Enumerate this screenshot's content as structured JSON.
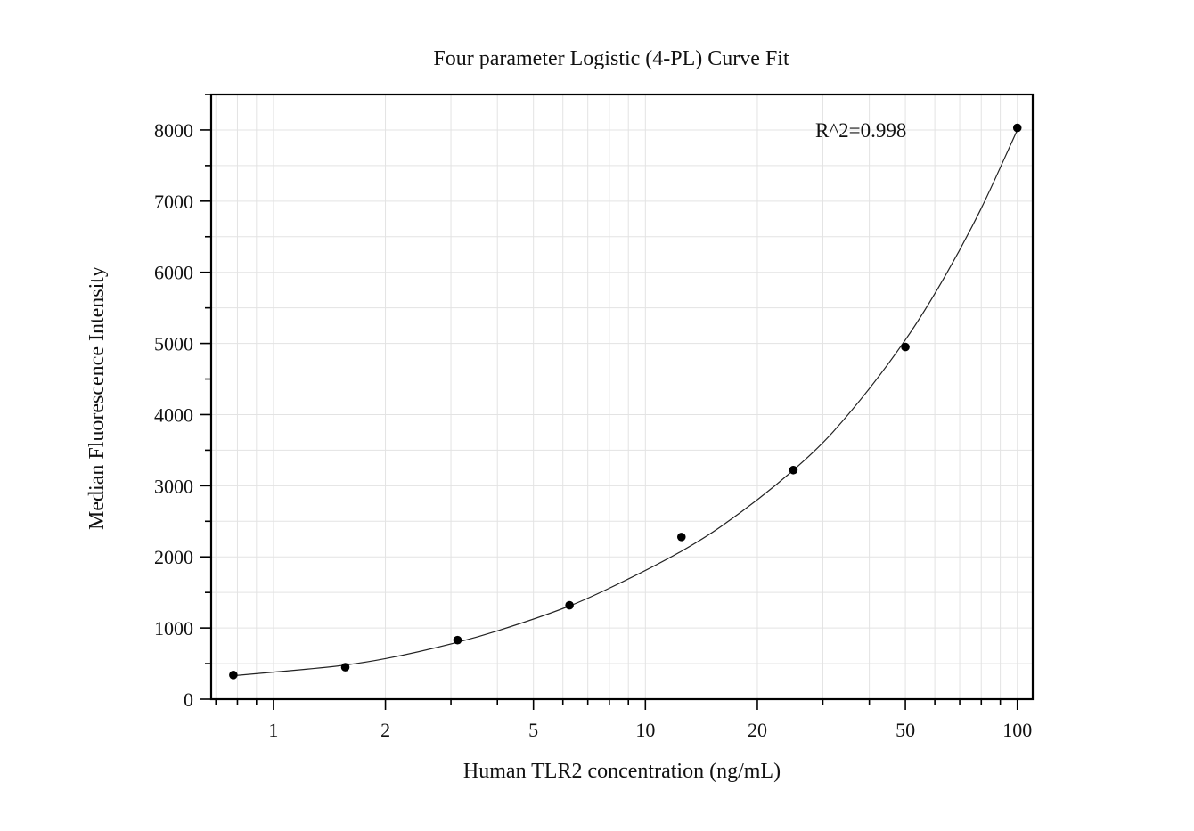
{
  "chart_data": {
    "type": "scatter",
    "title": "Four parameter Logistic (4-PL) Curve Fit",
    "xlabel": "Human TLR2 concentration (ng/mL)",
    "ylabel": "Median Fluorescence Intensity",
    "x_scale": "log",
    "xlim": [
      0.68,
      110
    ],
    "ylim": [
      0,
      8500
    ],
    "x_ticks": [
      1,
      2,
      5,
      10,
      20,
      50,
      100
    ],
    "x_tick_labels": [
      "1",
      "2",
      "5",
      "10",
      "20",
      "50",
      "100"
    ],
    "y_ticks": [
      0,
      1000,
      2000,
      3000,
      4000,
      5000,
      6000,
      7000,
      8000
    ],
    "y_tick_labels": [
      "0",
      "1000",
      "2000",
      "3000",
      "4000",
      "5000",
      "6000",
      "7000",
      "8000"
    ],
    "grid": true,
    "series": [
      {
        "x": [
          0.78,
          1.56,
          3.125,
          6.25,
          12.5,
          25,
          50,
          100
        ],
        "y": [
          340,
          450,
          830,
          1320,
          2280,
          3220,
          4950,
          8030
        ]
      }
    ],
    "fit_curve": {
      "model": "4-PL",
      "x": [
        0.78,
        1,
        1.56,
        2,
        3.125,
        4,
        6.25,
        8,
        12.5,
        16,
        25,
        32,
        50,
        64,
        80,
        100
      ],
      "y": [
        330,
        380,
        480,
        570,
        800,
        960,
        1310,
        1560,
        2080,
        2430,
        3220,
        3760,
        5050,
        5950,
        6900,
        8000
      ]
    },
    "annotations": [
      {
        "text": "R^2=0.998",
        "position": "top-right"
      }
    ]
  },
  "colors": {
    "point": "#000000",
    "curve": "#222222",
    "grid": "#e3e3e3",
    "axis": "#000000"
  }
}
